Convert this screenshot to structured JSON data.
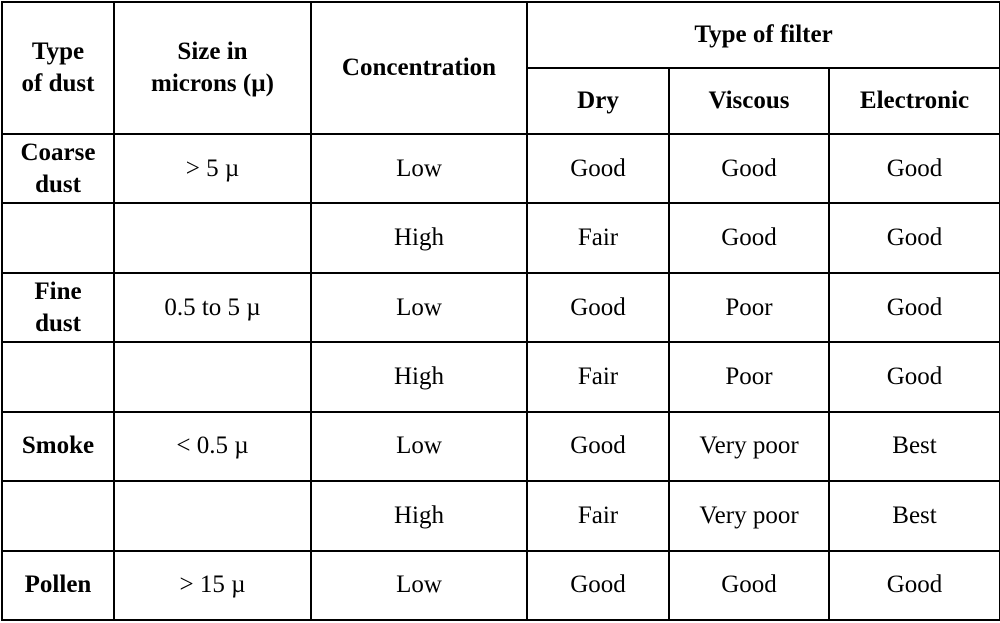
{
  "table": {
    "headers": {
      "type_of_dust": "Type of dust",
      "size": "Size in microns (µ)",
      "concentration": "Concentration",
      "type_of_filter": "Type of filter",
      "dry": "Dry",
      "viscous": "Viscous",
      "electronic": "Electronic"
    },
    "rows": [
      {
        "type": "Coarse dust",
        "size": "> 5 µ",
        "concentration": "Low",
        "dry": "Good",
        "viscous": "Good",
        "electronic": "Good"
      },
      {
        "type": "",
        "size": "",
        "concentration": "High",
        "dry": "Fair",
        "viscous": "Good",
        "electronic": "Good"
      },
      {
        "type": "Fine dust",
        "size": "0.5 to 5 µ",
        "concentration": "Low",
        "dry": "Good",
        "viscous": "Poor",
        "electronic": "Good"
      },
      {
        "type": "",
        "size": "",
        "concentration": "High",
        "dry": "Fair",
        "viscous": "Poor",
        "electronic": "Good"
      },
      {
        "type": "Smoke",
        "size": "< 0.5 µ",
        "concentration": "Low",
        "dry": "Good",
        "viscous": "Very poor",
        "electronic": "Best"
      },
      {
        "type": "",
        "size": "",
        "concentration": "High",
        "dry": "Fair",
        "viscous": "Very poor",
        "electronic": "Best"
      },
      {
        "type": "Pollen",
        "size": "> 15 µ",
        "concentration": "Low",
        "dry": "Good",
        "viscous": "Good",
        "electronic": "Good"
      }
    ]
  }
}
